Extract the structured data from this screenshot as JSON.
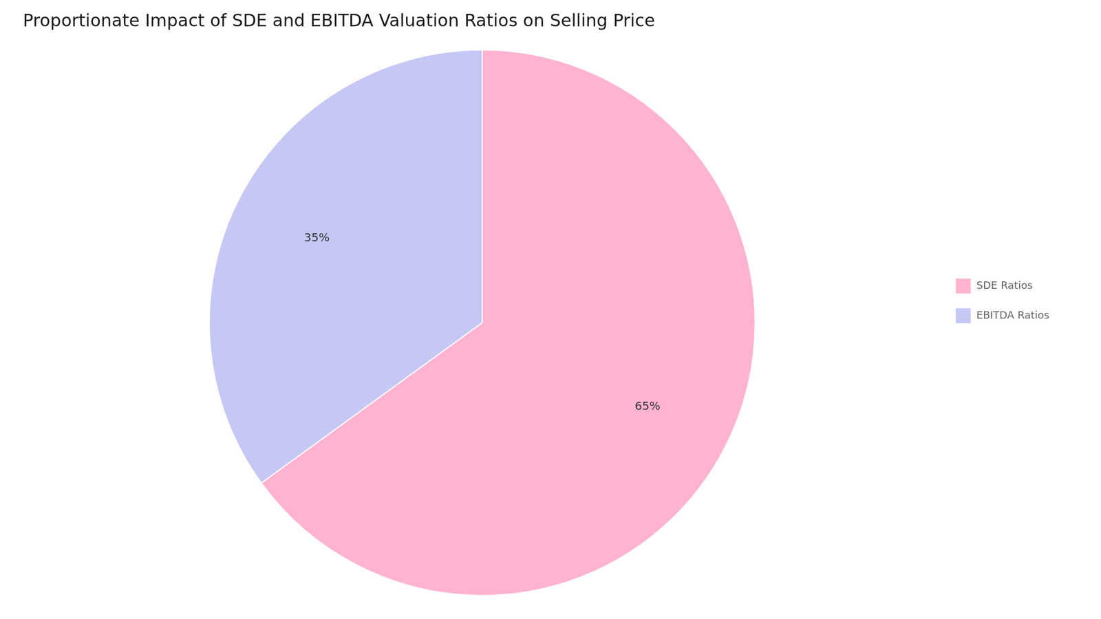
{
  "chart_data": {
    "type": "pie",
    "title": "Proportionate Impact of SDE and EBITDA Valuation Ratios on Selling Price",
    "categories": [
      "SDE Ratios",
      "EBITDA Ratios"
    ],
    "values": [
      65,
      35
    ],
    "value_labels": [
      "65%",
      "35%"
    ],
    "colors": [
      "#FFB3D1",
      "#C5C8F5"
    ],
    "data_labels": true,
    "legend": "right"
  }
}
